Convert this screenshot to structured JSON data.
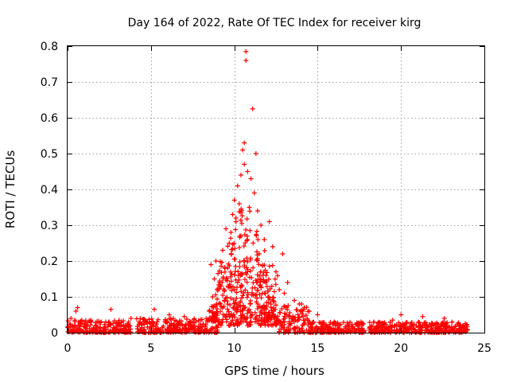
{
  "chart_data": {
    "type": "scatter",
    "title": "Day 164 of 2022, Rate Of TEC Index for receiver kirg",
    "xlabel": "GPS time / hours",
    "ylabel": "ROTI / TECUs",
    "xlim": [
      0,
      25
    ],
    "ylim": [
      0,
      0.8
    ],
    "xticks": [
      0,
      5,
      10,
      15,
      20,
      25
    ],
    "yticks": [
      0,
      0.1,
      0.2,
      0.3,
      0.4,
      0.5,
      0.6,
      0.7,
      0.8
    ],
    "grid": true,
    "marker": "+",
    "color": "#ff0000",
    "series": [
      {
        "name": "ROTI",
        "points": [
          [
            10.7,
            0.785
          ],
          [
            10.7,
            0.76
          ],
          [
            11.1,
            0.625
          ],
          [
            10.6,
            0.53
          ],
          [
            11.3,
            0.5
          ],
          [
            10.5,
            0.51
          ],
          [
            10.6,
            0.47
          ],
          [
            10.8,
            0.45
          ],
          [
            10.4,
            0.44
          ],
          [
            11.0,
            0.43
          ],
          [
            10.2,
            0.41
          ],
          [
            11.2,
            0.39
          ],
          [
            10.0,
            0.37
          ],
          [
            10.3,
            0.36
          ],
          [
            10.9,
            0.35
          ],
          [
            11.4,
            0.34
          ],
          [
            9.9,
            0.33
          ],
          [
            10.1,
            0.32
          ],
          [
            12.1,
            0.31
          ],
          [
            11.6,
            0.3
          ],
          [
            9.5,
            0.29
          ],
          [
            9.8,
            0.28
          ],
          [
            10.4,
            0.27
          ],
          [
            11.8,
            0.26
          ],
          [
            9.7,
            0.25
          ],
          [
            12.3,
            0.24
          ],
          [
            9.3,
            0.23
          ],
          [
            11.5,
            0.22
          ],
          [
            12.9,
            0.22
          ],
          [
            8.9,
            0.2
          ],
          [
            10.6,
            0.2
          ],
          [
            8.6,
            0.19
          ],
          [
            9.6,
            0.18
          ],
          [
            12.5,
            0.17
          ],
          [
            11.9,
            0.16
          ],
          [
            8.8,
            0.15
          ],
          [
            13.2,
            0.14
          ],
          [
            10.2,
            0.14
          ],
          [
            9.2,
            0.13
          ],
          [
            12.7,
            0.12
          ],
          [
            13.0,
            0.11
          ],
          [
            11.7,
            0.11
          ],
          [
            8.7,
            0.1
          ],
          [
            13.6,
            0.09
          ],
          [
            9.4,
            0.09
          ],
          [
            13.9,
            0.08
          ],
          [
            12.2,
            0.08
          ],
          [
            14.2,
            0.07
          ],
          [
            14.5,
            0.06
          ],
          [
            8.5,
            0.06
          ],
          [
            15.0,
            0.05
          ],
          [
            0.6,
            0.07
          ],
          [
            0.5,
            0.06
          ],
          [
            2.6,
            0.065
          ],
          [
            5.2,
            0.065
          ],
          [
            3.8,
            0.04
          ],
          [
            6.1,
            0.05
          ],
          [
            7.0,
            0.045
          ],
          [
            20.0,
            0.05
          ],
          [
            21.3,
            0.045
          ],
          [
            22.6,
            0.04
          ],
          [
            0.2,
            0.04
          ],
          [
            1.4,
            0.035
          ],
          [
            4.6,
            0.03
          ],
          [
            17.6,
            0.03
          ],
          [
            19.5,
            0.035
          ],
          [
            16.0,
            0.03
          ]
        ]
      }
    ],
    "dense_band": {
      "description": "dense background of points along the baseline",
      "segments": [
        {
          "x": [
            0,
            3.8
          ],
          "y": [
            0,
            0.035
          ]
        },
        {
          "x": [
            4.1,
            8.4
          ],
          "y": [
            0,
            0.04
          ]
        },
        {
          "x": [
            8.4,
            9.0
          ],
          "y": [
            0,
            0.08
          ]
        },
        {
          "x": [
            9.0,
            12.6
          ],
          "y": [
            0.02,
            0.2
          ]
        },
        {
          "x": [
            12.6,
            14.5
          ],
          "y": [
            0,
            0.08
          ]
        },
        {
          "x": [
            14.5,
            17.8
          ],
          "y": [
            0,
            0.03
          ]
        },
        {
          "x": [
            18.1,
            24.0
          ],
          "y": [
            0,
            0.03
          ]
        }
      ]
    }
  }
}
